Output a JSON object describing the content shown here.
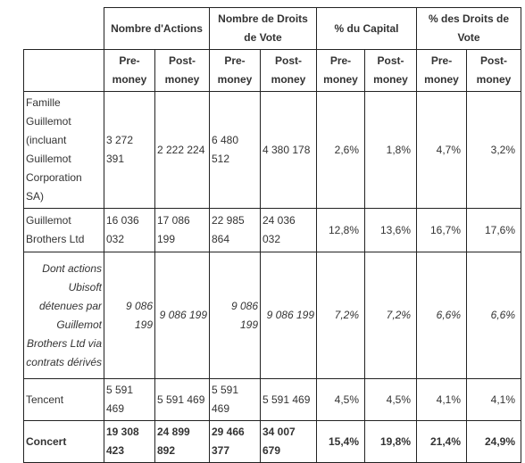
{
  "table": {
    "header": {
      "groups": [
        "Nombre d'Actions",
        "Nombre de Droits de Vote",
        "% du Capital",
        "% des Droits de Vote"
      ],
      "subheaders": [
        "Pre-money",
        "Post-money",
        "Pre-money",
        "Post-money",
        "Pre-money",
        "Post-money",
        "Pre-money",
        "Post-money"
      ]
    },
    "rows": [
      [
        "Famille Guillemot (incluant Guillemot Corporation SA)",
        "3 272 391",
        "2 222 224",
        "6 480 512",
        "4 380 178",
        "2,6%",
        "1,8%",
        "4,7%",
        "3,2%"
      ],
      [
        "Guillemot Brothers Ltd",
        "16 036 032",
        "17 086 199",
        "22 985 864",
        "24 036 032",
        "12,8%",
        "13,6%",
        "16,7%",
        "17,6%"
      ],
      [
        "Dont actions Ubisoft détenues par Guillemot Brothers Ltd via contrats dérivés",
        "9 086 199",
        "9 086 199",
        "9 086 199",
        "9 086 199",
        "7,2%",
        "7,2%",
        "6,6%",
        "6,6%"
      ],
      [
        "Tencent",
        "5 591 469",
        "5 591 469",
        "5 591 469",
        "5 591 469",
        "4,5%",
        "4,5%",
        "4,1%",
        "4,1%"
      ],
      [
        "Concert",
        "19 308 423",
        "24 899 892",
        "29 466 377",
        "34 007 679",
        "15,4%",
        "19,8%",
        "21,4%",
        "24,9%"
      ]
    ]
  }
}
